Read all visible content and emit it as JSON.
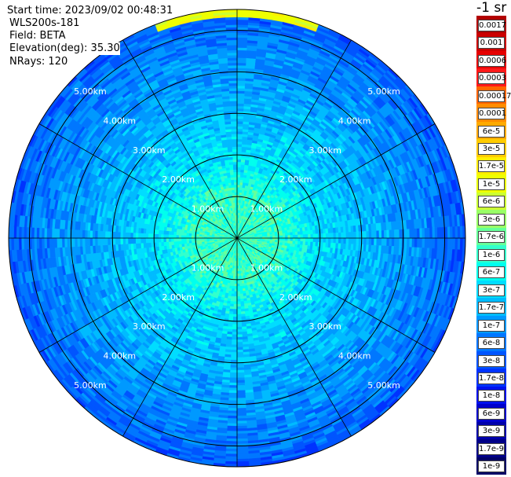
{
  "header": {
    "start_time": "Start time: 2023/09/02 00:48:31",
    "instrument": "WLS200s-181",
    "field": "Field: BETA",
    "elevation": "Elevation(deg): 35.30",
    "nrays": "NRays: 120"
  },
  "colorbar": {
    "unit_label": "-1 sr",
    "labels": [
      "0.0017",
      "0.001",
      "0.0006",
      "0.0003",
      "0.00017",
      "0.0001",
      "6e-5",
      "3e-5",
      "1.7e-5",
      "1e-5",
      "6e-6",
      "3e-6",
      "1.7e-6",
      "1e-6",
      "6e-7",
      "3e-7",
      "1.7e-7",
      "1e-7",
      "6e-8",
      "3e-8",
      "1.7e-8",
      "1e-8",
      "6e-9",
      "3e-9",
      "1.7e-9",
      "1e-9"
    ],
    "colors": [
      "#b30000",
      "#cc0000",
      "#e60000",
      "#ff1a1a",
      "#ff6600",
      "#ff8c00",
      "#ffaa00",
      "#ffcc00",
      "#ffee00",
      "#eeff00",
      "#ccff33",
      "#99ff66",
      "#66ff99",
      "#33ffcc",
      "#00ffee",
      "#00ddff",
      "#00bbff",
      "#0099ff",
      "#0077ff",
      "#0055ff",
      "#0033ff",
      "#0011ee",
      "#0000cc",
      "#0000aa",
      "#000088",
      "#000066"
    ]
  },
  "chart_data": {
    "type": "heatmap",
    "projection": "polar PPI scan",
    "field": "BETA",
    "elevation_deg": 35.3,
    "n_rays": 120,
    "range_rings_km": [
      1.0,
      2.0,
      3.0,
      4.0,
      5.0
    ],
    "ring_labels": [
      "1.00km",
      "2.00km",
      "3.00km",
      "4.00km",
      "5.00km"
    ],
    "spokes_every_deg": 30,
    "max_range_km": 5.5,
    "radial_profile": [
      {
        "range_km": 0.0,
        "typical_beta": "1e-6"
      },
      {
        "range_km": 1.0,
        "typical_beta": "1e-6"
      },
      {
        "range_km": 2.0,
        "typical_beta": "3e-7"
      },
      {
        "range_km": 3.0,
        "typical_beta": "1.7e-7"
      },
      {
        "range_km": 4.0,
        "typical_beta": "1e-7"
      },
      {
        "range_km": 5.0,
        "typical_beta": "6e-8"
      },
      {
        "range_km": 5.5,
        "typical_beta": "3e-8"
      }
    ],
    "features": [
      {
        "azimuth_deg_start": 340,
        "azimuth_deg_end": 20,
        "range_km": 5.5,
        "beta": "1e-5",
        "note": "high-backscatter arc at outer edge"
      }
    ]
  }
}
